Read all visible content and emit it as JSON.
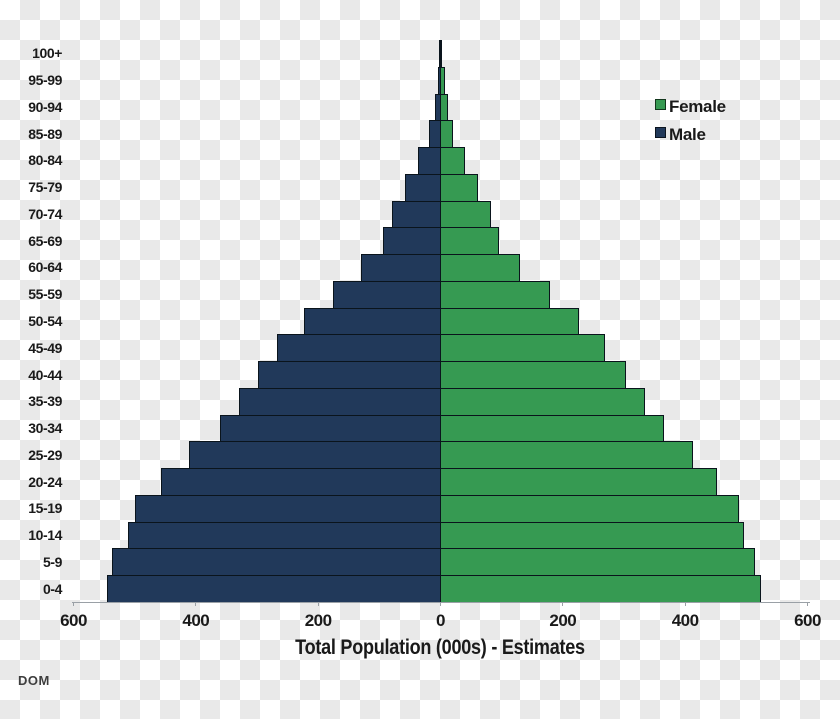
{
  "footnote": "DOM",
  "legend": {
    "female_label": "Female",
    "male_label": "Male"
  },
  "colors": {
    "male": "#21395A",
    "female": "#369A52",
    "bar_border": "#0A141C",
    "axis": "#9aa0a6",
    "text": "#1A1A1A"
  },
  "chart_data": {
    "type": "bar",
    "subtype": "population-pyramid",
    "title": "",
    "xlabel": "Total Population (000s) - Estimates",
    "ylabel": "",
    "units": "thousands of people",
    "grid": "off",
    "legend_position": "top-right",
    "xlim": [
      -600,
      600
    ],
    "x_tick_positions": [
      -600,
      -400,
      -200,
      0,
      200,
      400,
      600
    ],
    "x_tick_labels": [
      "600",
      "400",
      "200",
      "0",
      "200",
      "400",
      "600"
    ],
    "categories": [
      "100+",
      "95-99",
      "90-94",
      "85-89",
      "80-84",
      "75-79",
      "70-74",
      "65-69",
      "60-64",
      "55-59",
      "50-54",
      "45-49",
      "40-44",
      "35-39",
      "30-34",
      "25-29",
      "20-24",
      "15-19",
      "10-14",
      "5-9",
      "0-4"
    ],
    "series": [
      {
        "name": "Male",
        "side": "left",
        "color": "#21395A",
        "values": [
          1,
          3,
          7,
          17,
          35,
          57,
          78,
          93,
          128,
          174,
          221,
          265,
          297,
          327,
          359,
          409,
          455,
          498,
          510,
          535,
          544
        ]
      },
      {
        "name": "Female",
        "side": "right",
        "color": "#369A52",
        "values": [
          1,
          6,
          11,
          19,
          38,
          59,
          81,
          94,
          129,
          178,
          224,
          268,
          302,
          332,
          364,
          411,
          451,
          486,
          494,
          513,
          522
        ]
      }
    ]
  }
}
